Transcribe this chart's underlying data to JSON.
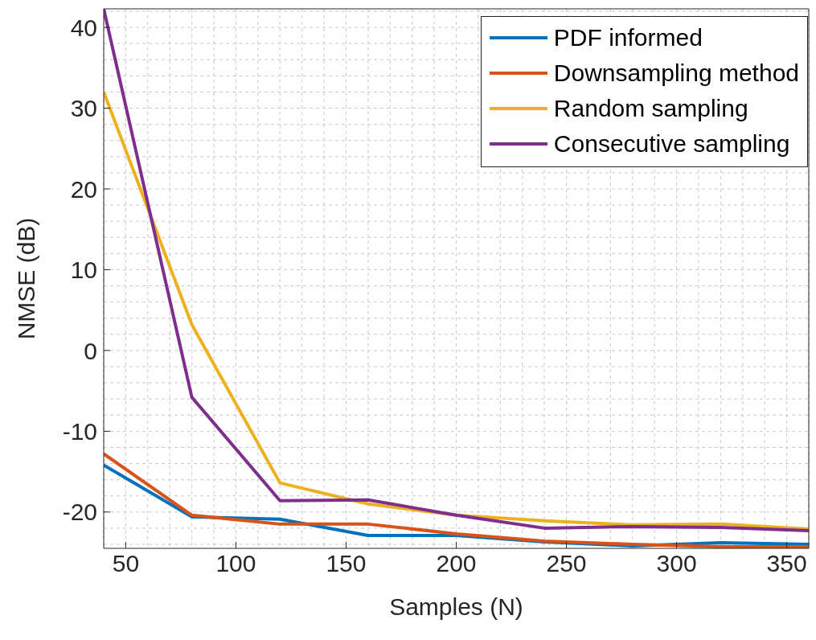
{
  "chart_data": {
    "type": "line",
    "xlabel": "Samples (N)",
    "ylabel": "NMSE (dB)",
    "x": [
      40,
      80,
      120,
      160,
      200,
      240,
      280,
      320,
      360
    ],
    "series": [
      {
        "name": "PDF informed",
        "color": "#0072bd",
        "values": [
          -14.2,
          -20.6,
          -20.9,
          -22.9,
          -22.9,
          -23.7,
          -24.2,
          -23.8,
          -24.0
        ]
      },
      {
        "name": "Downsampling method",
        "color": "#d95319",
        "values": [
          -12.8,
          -20.4,
          -21.5,
          -21.5,
          -22.7,
          -23.6,
          -24.0,
          -24.3,
          -24.3
        ]
      },
      {
        "name": "Random sampling",
        "color": "#edb120",
        "values": [
          32,
          3.2,
          -16.4,
          -19.0,
          -20.4,
          -21.1,
          -21.6,
          -21.5,
          -22.1
        ]
      },
      {
        "name": "Consecutive sampling",
        "color": "#7e2f8e",
        "values": [
          42.3,
          -5.8,
          -18.6,
          -18.5,
          -20.4,
          -22.0,
          -21.8,
          -21.9,
          -22.3
        ]
      }
    ],
    "xlim": [
      40,
      360
    ],
    "xticks": [
      50,
      100,
      150,
      200,
      250,
      300,
      350
    ],
    "ylim": [
      -24.5,
      42.3
    ],
    "yticks": [
      -20,
      -10,
      0,
      10,
      20,
      30,
      40
    ],
    "grid": true,
    "legend": "top right",
    "marker": "none",
    "line_style": "solid"
  }
}
